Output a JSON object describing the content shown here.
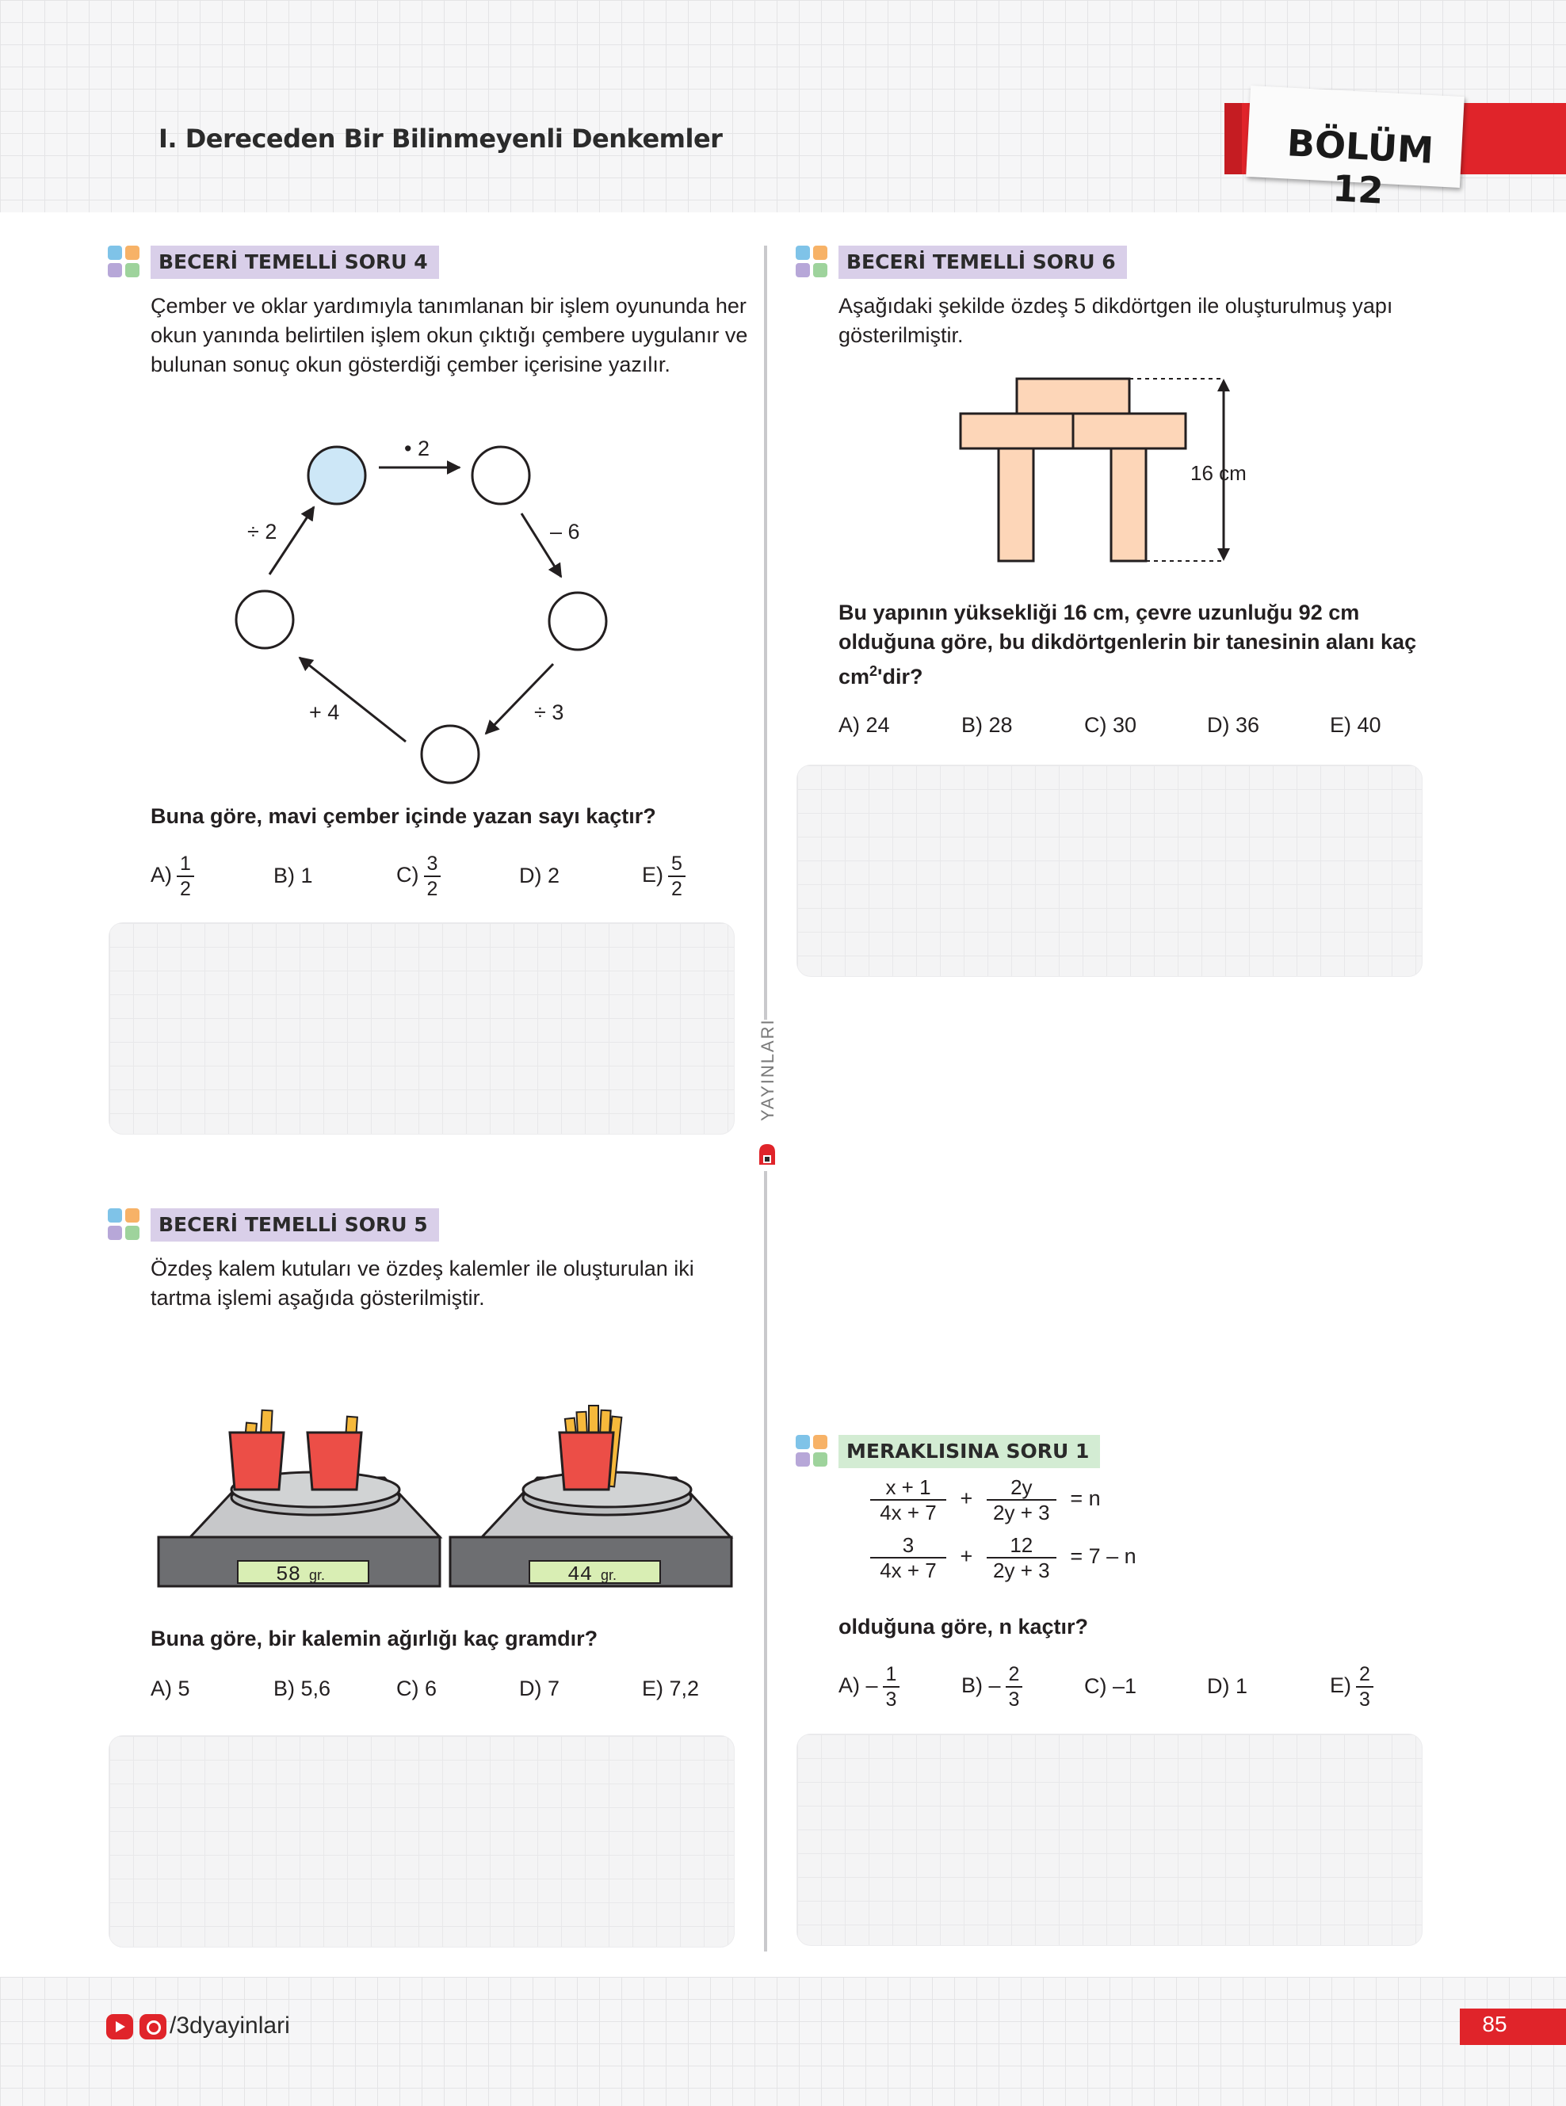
{
  "header": {
    "chapter_title": "I. Dereceden Bir Bilinmeyenli Denkemler",
    "section_label": "BÖLÜM 12"
  },
  "publisher_vertical": "YAYINLARI",
  "questions": {
    "q4": {
      "tag": "BECERİ TEMELLİ SORU 4",
      "text": "Çember ve oklar yardımıyla tanımlanan bir işlem oyununda her okun yanında belirtilen işlem okun çıktığı çembere uygulanır ve bulunan sonuç okun gösterdiği çember içerisine yazılır.",
      "ops": {
        "top": "• 2",
        "right": "– 6",
        "left": "÷ 2",
        "bottom_right": "÷ 3",
        "bottom_left": "+ 4"
      },
      "prompt": "Buna göre, mavi çember içinde yazan sayı kaçtır?",
      "answers": {
        "a_label": "A)",
        "a_num": "1",
        "a_den": "2",
        "b": "B) 1",
        "c_label": "C)",
        "c_num": "3",
        "c_den": "2",
        "d": "D) 2",
        "e_label": "E)",
        "e_num": "5",
        "e_den": "2"
      }
    },
    "q5": {
      "tag": "BECERİ TEMELLİ SORU 5",
      "text": "Özdeş kalem kutuları ve özdeş kalemler ile oluşturulan iki tartma işlemi aşağıda gösterilmiştir.",
      "scale1_value": "58",
      "scale2_value": "44",
      "scale_unit": "gr.",
      "prompt": "Buna göre, bir kalemin ağırlığı kaç gramdır?",
      "answers": {
        "a": "A) 5",
        "b": "B) 5,6",
        "c": "C) 6",
        "d": "D) 7",
        "e": "E) 7,2"
      }
    },
    "q6": {
      "tag": "BECERİ TEMELLİ SORU 6",
      "text": "Aşağıdaki şekilde özdeş 5 dikdörtgen ile oluşturulmuş yapı gösterilmiştir.",
      "dimension_label": "16 cm",
      "prompt_part1": "Bu yapının yüksekliği 16 cm, çevre uzunluğu 92 cm olduğuna göre, bu dikdörtgenlerin bir tanesinin alanı kaç cm",
      "prompt_sup": "2",
      "prompt_part2": "'dir?",
      "answers": {
        "a": "A) 24",
        "b": "B) 28",
        "c": "C) 30",
        "d": "D) 36",
        "e": "E) 40"
      }
    },
    "m1": {
      "tag": "MERAKLISINA SORU 1",
      "eq1": {
        "f1_num": "x + 1",
        "f1_den": "4x + 7",
        "plus": "+",
        "f2_num": "2y",
        "f2_den": "2y + 3",
        "rhs": "= n"
      },
      "eq2": {
        "f1_num": "3",
        "f1_den": "4x + 7",
        "plus": "+",
        "f2_num": "12",
        "f2_den": "2y + 3",
        "rhs": "= 7 – n"
      },
      "prompt": "olduğuna göre, n kaçtır?",
      "answers": {
        "a_label": "A) –",
        "a_num": "1",
        "a_den": "3",
        "b_label": "B) –",
        "b_num": "2",
        "b_den": "3",
        "c": "C) –1",
        "d": "D) 1",
        "e_label": "E)",
        "e_num": "2",
        "e_den": "3"
      }
    }
  },
  "footer": {
    "social_handle": "/3dyayinlari",
    "page_number": "85"
  },
  "colors": {
    "accent_red": "#e0242a",
    "tag_purple": "#d9cfe9",
    "tag_green": "#d3ecd3",
    "blue_circle": "#cde7f7",
    "rectangle_fill": "#fdd6b8",
    "cup_red": "#ec4e47",
    "pencil_yellow": "#f6b93b",
    "display_green": "#d9eeb4"
  },
  "icons": [
    "youtube-icon",
    "instagram-icon",
    "quad-square-icon"
  ]
}
